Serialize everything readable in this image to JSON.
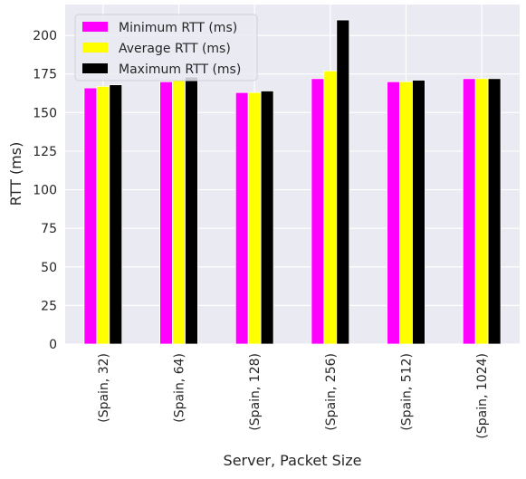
{
  "chart_data": {
    "type": "bar",
    "title": "",
    "xlabel": "Server, Packet Size",
    "ylabel": "RTT (ms)",
    "ylim": [
      0,
      220
    ],
    "yticks": [
      0,
      25,
      50,
      75,
      100,
      125,
      150,
      175,
      200
    ],
    "categories": [
      "(Spain, 32)",
      "(Spain, 64)",
      "(Spain, 128)",
      "(Spain, 256)",
      "(Spain, 512)",
      "(Spain, 1024)"
    ],
    "series": [
      {
        "name": "Minimum RTT (ms)",
        "color": "#ff00ff",
        "values": [
          166,
          170,
          163,
          172,
          170,
          172
        ]
      },
      {
        "name": "Average RTT (ms)",
        "color": "#ffff00",
        "values": [
          167,
          171,
          163,
          177,
          170,
          172
        ]
      },
      {
        "name": "Maximum RTT (ms)",
        "color": "#000000",
        "values": [
          168,
          173,
          164,
          210,
          171,
          172
        ]
      }
    ],
    "grid": true,
    "legend_position": "top-left",
    "background_color": "#eaeaf2",
    "grid_color": "#ffffff"
  }
}
